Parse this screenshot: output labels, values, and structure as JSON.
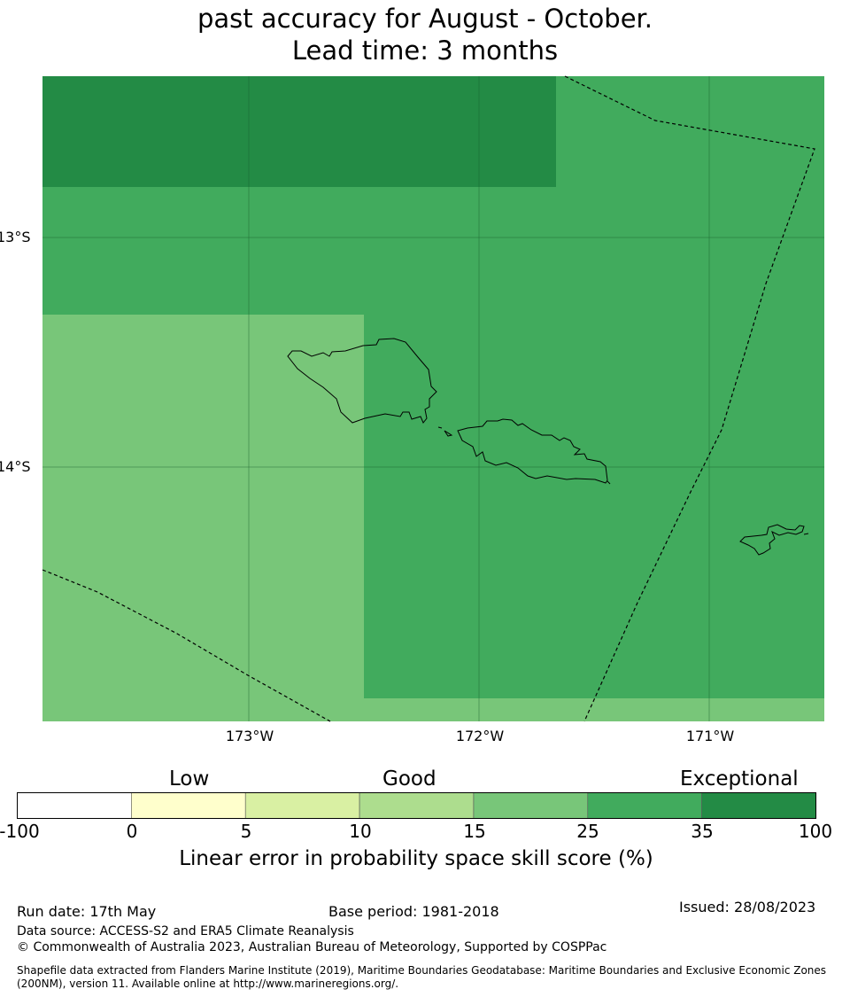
{
  "title": {
    "line1": "past accuracy for August - October.",
    "line2": "Lead time: 3 months"
  },
  "map": {
    "lat_labels": [
      "13°S",
      "14°S"
    ],
    "lon_labels": [
      "173°W",
      "172°W",
      "171°W"
    ],
    "cells": [
      {
        "category": "35-100",
        "color": "#238b45"
      },
      {
        "category": "25-35",
        "color": "#41ab5d"
      },
      {
        "category": "15-25",
        "color": "#78c679"
      }
    ]
  },
  "colorbar": {
    "categories": [
      "Low",
      "Good",
      "Exceptional"
    ],
    "ticks": [
      "-100",
      "0",
      "5",
      "10",
      "15",
      "25",
      "35",
      "100"
    ],
    "colors": [
      "#ffffff",
      "#ffffcc",
      "#d9f0a3",
      "#addd8e",
      "#78c679",
      "#41ab5d",
      "#238b45"
    ],
    "caption": "Linear error in probability space skill score (%)"
  },
  "footer": {
    "run_date": "Run date: 17th May",
    "base_period": "Base period: 1981-2018",
    "issued": "Issued: 28/08/2023",
    "data_source": "Data source: ACCESS-S2 and ERA5 Climate Reanalysis",
    "copyright": "© Commonwealth of Australia 2023, Australian Bureau of Meteorology, Supported by COSPPac",
    "shapefile": "Shapefile data extracted from Flanders Marine Institute (2019), Maritime Boundaries Geodatabase: Maritime Boundaries and Exclusive Economic Zones (200NM), version 11. Available online at http://www.marineregions.org/."
  }
}
